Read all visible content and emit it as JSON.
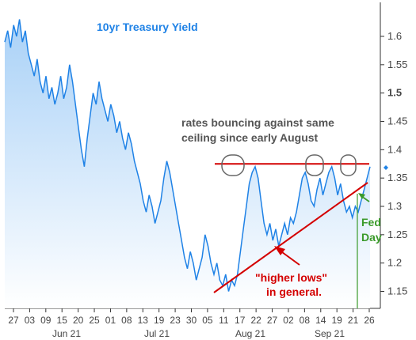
{
  "chart_data": {
    "type": "line",
    "title": "10yr Treasury Yield",
    "ylim": [
      1.12,
      1.66
    ],
    "y_ticks": [
      {
        "label": "1.15",
        "value": 1.15,
        "bold": false
      },
      {
        "label": "1.2",
        "value": 1.2,
        "bold": false
      },
      {
        "label": "1.25",
        "value": 1.25,
        "bold": false
      },
      {
        "label": "1.3",
        "value": 1.3,
        "bold": false
      },
      {
        "label": "1.35",
        "value": 1.35,
        "bold": false
      },
      {
        "label": "1.4",
        "value": 1.4,
        "bold": false
      },
      {
        "label": "1.45",
        "value": 1.45,
        "bold": false
      },
      {
        "label": "1.5",
        "value": 1.5,
        "bold": true
      },
      {
        "label": "1.55",
        "value": 1.55,
        "bold": false
      },
      {
        "label": "1.6",
        "value": 1.6,
        "bold": false
      }
    ],
    "x_tick_labels": [
      "27",
      "03",
      "09",
      "15",
      "20",
      "25",
      "01",
      "08",
      "13",
      "19",
      "23",
      "30",
      "05",
      "11",
      "17",
      "22",
      "27",
      "02",
      "08",
      "14",
      "19",
      "21",
      "26"
    ],
    "month_labels": [
      "Jun 21",
      "Jul 21",
      "Aug 21",
      "Sep 21"
    ],
    "series": [
      {
        "color": "#1f82e6",
        "values": [
          1.59,
          1.61,
          1.58,
          1.62,
          1.6,
          1.63,
          1.59,
          1.61,
          1.57,
          1.55,
          1.53,
          1.56,
          1.52,
          1.5,
          1.53,
          1.49,
          1.51,
          1.48,
          1.5,
          1.53,
          1.49,
          1.51,
          1.55,
          1.52,
          1.48,
          1.44,
          1.4,
          1.37,
          1.42,
          1.46,
          1.5,
          1.48,
          1.52,
          1.49,
          1.47,
          1.45,
          1.48,
          1.46,
          1.43,
          1.45,
          1.42,
          1.4,
          1.43,
          1.41,
          1.38,
          1.36,
          1.34,
          1.31,
          1.29,
          1.32,
          1.3,
          1.27,
          1.29,
          1.31,
          1.35,
          1.38,
          1.36,
          1.33,
          1.3,
          1.27,
          1.24,
          1.21,
          1.19,
          1.22,
          1.2,
          1.17,
          1.19,
          1.21,
          1.25,
          1.23,
          1.2,
          1.18,
          1.2,
          1.17,
          1.16,
          1.18,
          1.15,
          1.17,
          1.16,
          1.18,
          1.22,
          1.26,
          1.3,
          1.34,
          1.36,
          1.37,
          1.35,
          1.31,
          1.27,
          1.25,
          1.27,
          1.24,
          1.26,
          1.23,
          1.25,
          1.27,
          1.25,
          1.28,
          1.27,
          1.29,
          1.32,
          1.35,
          1.36,
          1.34,
          1.31,
          1.3,
          1.33,
          1.35,
          1.32,
          1.34,
          1.36,
          1.37,
          1.35,
          1.32,
          1.34,
          1.31,
          1.29,
          1.3,
          1.28,
          1.3,
          1.29,
          1.31,
          1.33,
          1.35,
          1.37
        ]
      }
    ],
    "annotations": {
      "ceiling_text_line1": "rates bouncing against same",
      "ceiling_text_line2": "ceiling since early August",
      "higher_lows_line1": "\"higher lows\"",
      "higher_lows_line2": "in general.",
      "fed_line1": "Fed",
      "fed_line2": "Day"
    },
    "ceiling_level": 1.375,
    "colors": {
      "line": "#1f82e6",
      "fill_top": "#a9d1f7",
      "fill_bottom": "#ffffff",
      "annotation_red": "#d40000",
      "annotation_gray": "#555555",
      "fed_green": "#3a9a2a",
      "title_blue": "#1f82e6",
      "axis": "#333333"
    }
  }
}
